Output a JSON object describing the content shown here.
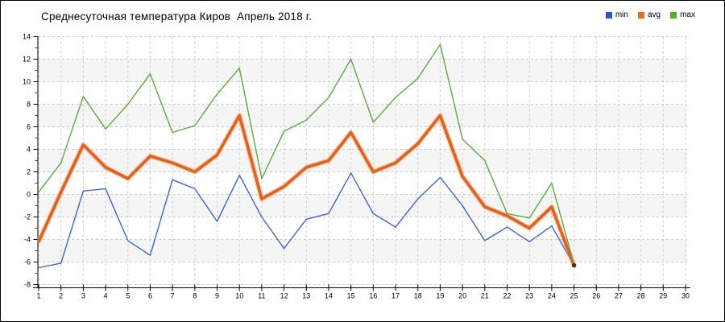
{
  "chart_data": {
    "type": "line",
    "title": "Среднесуточная температура Киров  Апрель 2018 г.",
    "x": [
      1,
      2,
      3,
      4,
      5,
      6,
      7,
      8,
      9,
      10,
      11,
      12,
      13,
      14,
      15,
      16,
      17,
      18,
      19,
      20,
      21,
      22,
      23,
      24,
      25
    ],
    "x_ticks": [
      1,
      2,
      3,
      4,
      5,
      6,
      7,
      8,
      9,
      10,
      11,
      12,
      13,
      14,
      15,
      16,
      17,
      18,
      19,
      20,
      21,
      22,
      23,
      24,
      25,
      26,
      27,
      28,
      29,
      30
    ],
    "y_ticks": [
      14,
      12,
      10,
      8,
      6,
      4,
      2,
      0,
      -2,
      -4,
      -6,
      -8
    ],
    "y_minor_ticks": [
      13,
      11,
      9,
      7,
      5,
      3,
      1,
      -1,
      -3,
      -5,
      -7
    ],
    "ylim": [
      -8,
      14
    ],
    "xlim": [
      1,
      30
    ],
    "gray_band_tops": [
      12,
      8,
      4,
      0,
      -4
    ],
    "grid": true,
    "legend_position": "top-right",
    "series": [
      {
        "name": "min",
        "color": "#3D64D2",
        "width": 1.4,
        "values": [
          -6.5,
          -6.1,
          0.3,
          0.5,
          -4.1,
          -5.4,
          1.3,
          0.5,
          -2.4,
          1.7,
          -2.0,
          -4.8,
          -2.2,
          -1.7,
          1.9,
          -1.7,
          -2.9,
          -0.4,
          1.5,
          -1.0,
          -4.1,
          -2.9,
          -4.2,
          -2.8,
          -6.3
        ]
      },
      {
        "name": "avg",
        "color": "#E2611C",
        "halo": "#F2A470",
        "width": 3.6,
        "values": [
          -4.2,
          0.2,
          4.4,
          2.4,
          1.4,
          3.4,
          2.8,
          2.0,
          3.5,
          7.0,
          -0.4,
          0.7,
          2.4,
          3.0,
          5.5,
          2.0,
          2.8,
          4.5,
          7.0,
          1.6,
          -1.1,
          -1.9,
          -3.0,
          -1.1,
          -6.3
        ]
      },
      {
        "name": "max",
        "color": "#5AAD3C",
        "width": 1.4,
        "values": [
          0.2,
          2.8,
          8.7,
          5.8,
          8.0,
          10.7,
          5.5,
          6.1,
          8.9,
          11.2,
          1.4,
          5.6,
          6.6,
          8.6,
          12.0,
          6.4,
          8.6,
          10.3,
          13.3,
          4.9,
          3.0,
          -1.7,
          -2.1,
          1.0,
          -6.2
        ]
      }
    ],
    "endpoint": {
      "day": 25,
      "value": -6.3,
      "color": "#52300E"
    },
    "colors": {
      "band": "#F5F5F5",
      "grid": "#CCCCCC",
      "axis": "#000000",
      "minor_tick": "#E00000"
    }
  },
  "legend": [
    {
      "label": "min",
      "color": "#2B52E0"
    },
    {
      "label": "avg",
      "color": "#ED6B21"
    },
    {
      "label": "max",
      "color": "#4CB122"
    }
  ]
}
